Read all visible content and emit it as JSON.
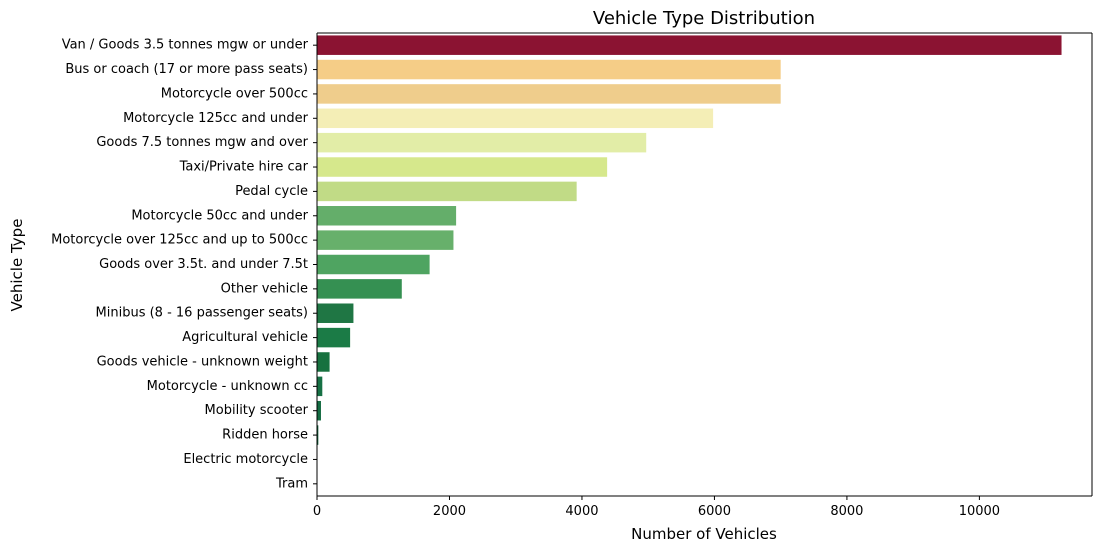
{
  "chart_data": {
    "type": "bar",
    "orientation": "horizontal",
    "title": "Vehicle Type Distribution",
    "xlabel": "Number of Vehicles",
    "ylabel": "Vehicle Type",
    "xlim": [
      0,
      11700
    ],
    "x_ticks": [
      0,
      2000,
      4000,
      6000,
      8000,
      10000
    ],
    "grid": false,
    "categories": [
      "Van / Goods 3.5 tonnes mgw or under",
      "Bus or coach (17 or more pass seats)",
      "Motorcycle over 500cc",
      "Motorcycle 125cc and under",
      "Goods 7.5 tonnes mgw and over",
      "Taxi/Private hire car",
      "Pedal cycle",
      "Motorcycle 50cc and under",
      "Motorcycle over 125cc and up to 500cc",
      "Goods over 3.5t. and under 7.5t",
      "Other vehicle",
      "Minibus (8 - 16 passenger seats)",
      "Agricultural vehicle",
      "Goods vehicle - unknown weight",
      "Motorcycle - unknown cc",
      "Mobility scooter",
      "Ridden horse",
      "Electric motorcycle",
      "Tram"
    ],
    "values": [
      11240,
      7000,
      7000,
      5980,
      4970,
      4380,
      3920,
      2100,
      2060,
      1700,
      1280,
      550,
      500,
      190,
      80,
      60,
      20,
      5,
      2
    ],
    "colors": [
      "#8b1332",
      "#f5cd87",
      "#efcd8c",
      "#f4eeb6",
      "#e2eda7",
      "#d6e88c",
      "#c1db86",
      "#64ae6a",
      "#67b06b",
      "#4fa461",
      "#359052",
      "#1f7644",
      "#1b7b46",
      "#17713f",
      "#167044",
      "#146c42",
      "#0f5e39",
      "#0d5a36",
      "#0a5332"
    ]
  }
}
